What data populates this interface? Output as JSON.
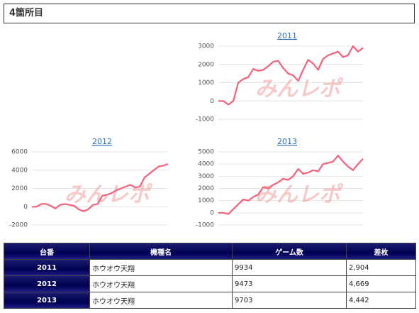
{
  "header": {
    "title": "4箇所目"
  },
  "watermark": "みんレポ",
  "chart_data": [
    {
      "type": "line",
      "title": "2011",
      "ylim": [
        -1000,
        3000
      ],
      "yticks": [
        -1000,
        0,
        1000,
        2000,
        3000
      ],
      "grid": true,
      "series": [
        {
          "color": "#f5607a",
          "values": [
            0,
            0,
            -200,
            0,
            1000,
            1200,
            1300,
            1750,
            1650,
            1700,
            1900,
            2150,
            2200,
            1800,
            1500,
            1400,
            1100,
            1700,
            2250,
            2050,
            1700,
            2300,
            2500,
            2600,
            2700,
            2400,
            2500,
            3000,
            2700,
            2904
          ]
        }
      ]
    },
    {
      "type": "line",
      "title": "2012",
      "ylim": [
        -2000,
        6000
      ],
      "yticks": [
        -2000,
        0,
        2000,
        4000,
        6000
      ],
      "grid": true,
      "series": [
        {
          "color": "#f5607a",
          "values": [
            0,
            0,
            300,
            300,
            100,
            -200,
            200,
            300,
            200,
            100,
            -300,
            -500,
            -300,
            200,
            300,
            1200,
            1300,
            1500,
            1800,
            2000,
            2200,
            2400,
            2100,
            2200,
            3200,
            3600,
            4000,
            4400,
            4500,
            4669
          ]
        }
      ]
    },
    {
      "type": "line",
      "title": "2013",
      "ylim": [
        -1000,
        5000
      ],
      "yticks": [
        -1000,
        0,
        1000,
        2000,
        3000,
        4000,
        5000
      ],
      "grid": true,
      "series": [
        {
          "color": "#f5607a",
          "values": [
            0,
            0,
            -100,
            300,
            700,
            1100,
            1000,
            1300,
            1500,
            2100,
            2000,
            2300,
            2500,
            2800,
            2700,
            3000,
            3600,
            3200,
            3300,
            3500,
            3400,
            4000,
            4100,
            4200,
            4700,
            4200,
            3800,
            3500,
            4000,
            4442
          ]
        }
      ]
    }
  ],
  "table": {
    "header": [
      "台番",
      "機種名",
      "ゲーム数",
      "差枚"
    ],
    "rows": [
      [
        "2011",
        "ホウオウ天翔",
        "9934",
        "2,904"
      ],
      [
        "2012",
        "ホウオウ天翔",
        "9473",
        "4,669"
      ],
      [
        "2013",
        "ホウオウ天翔",
        "9703",
        "4,442"
      ]
    ]
  }
}
